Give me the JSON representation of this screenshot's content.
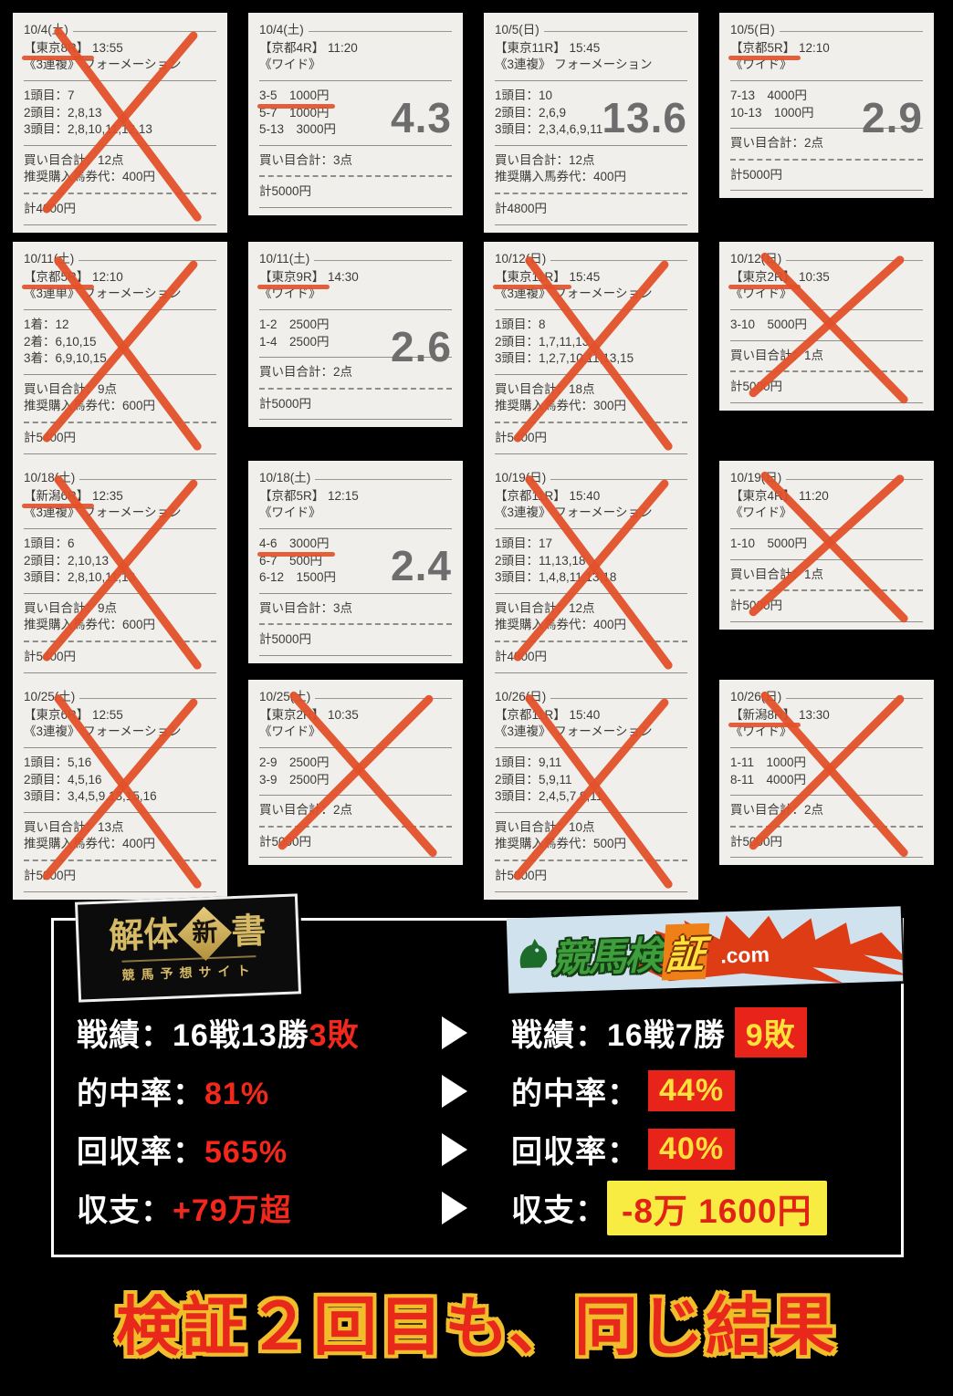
{
  "cards": [
    {
      "date": "10/4(土)",
      "race": "【東京8R】",
      "time": "13:55",
      "type": "《3連複》 フォーメーション",
      "race_marked": true,
      "selections": [
        {
          "text": "1頭目：7"
        },
        {
          "text": "2頭目：2,8,13"
        },
        {
          "text": "3頭目：2,8,10,11,12,13"
        }
      ],
      "points": "買い目合計：12点",
      "fee": "推奨購入馬券代：400円",
      "total": "計4800円",
      "result": "lose",
      "odds": ""
    },
    {
      "date": "10/4(土)",
      "race": "【京都4R】",
      "time": "11:20",
      "type": "《ワイド》",
      "race_marked": false,
      "selections": [
        {
          "text": "3-5　1000円",
          "underline": true
        },
        {
          "text": "5-7　1000円"
        },
        {
          "text": "5-13　3000円"
        }
      ],
      "points": "買い目合計：3点",
      "fee": "",
      "total": "計5000円",
      "result": "win",
      "odds": "4.3"
    },
    {
      "date": "10/5(日)",
      "race": "【東京11R】",
      "time": "15:45",
      "type": "《3連複》 フォーメーション",
      "race_marked": false,
      "selections": [
        {
          "text": "1頭目：10"
        },
        {
          "text": "2頭目：2,6,9"
        },
        {
          "text": "3頭目：2,3,4,6,9,11"
        }
      ],
      "points": "買い目合計：12点",
      "fee": "推奨購入馬券代：400円",
      "total": "計4800円",
      "result": "win",
      "odds": "13.6"
    },
    {
      "date": "10/5(日)",
      "race": "【京都5R】",
      "time": "12:10",
      "type": "《ワイド》",
      "race_marked": true,
      "selections": [
        {
          "text": "7-13　4000円"
        },
        {
          "text": "10-13　1000円"
        }
      ],
      "points": "買い目合計：2点",
      "fee": "",
      "total": "計5000円",
      "result": "win",
      "odds": "2.9"
    },
    {
      "date": "10/11(土)",
      "race": "【京都5R】",
      "time": "12:10",
      "type": "《3連単》 フォーメーション",
      "race_marked": true,
      "selections": [
        {
          "text": "1着：12"
        },
        {
          "text": "2着：6,10,15"
        },
        {
          "text": "3着：6,9,10,15"
        }
      ],
      "points": "買い目合計：9点",
      "fee": "推奨購入馬券代：600円",
      "total": "計5400円",
      "result": "lose",
      "odds": ""
    },
    {
      "date": "10/11(土)",
      "race": "【東京9R】",
      "time": "14:30",
      "type": "《ワイド》",
      "race_marked": true,
      "selections": [
        {
          "text": "1-2　2500円"
        },
        {
          "text": "1-4　2500円"
        }
      ],
      "points": "買い目合計：2点",
      "fee": "",
      "total": "計5000円",
      "result": "win",
      "odds": "2.6"
    },
    {
      "date": "10/12(日)",
      "race": "【東京11R】",
      "time": "15:45",
      "type": "《3連複》 フォーメーション",
      "race_marked": true,
      "selections": [
        {
          "text": "1頭目：8"
        },
        {
          "text": "2頭目：1,7,11,13"
        },
        {
          "text": "3頭目：1,2,7,10,11,13,15"
        }
      ],
      "points": "買い目合計：18点",
      "fee": "推奨購入馬券代：300円",
      "total": "計5400円",
      "result": "lose",
      "odds": ""
    },
    {
      "date": "10/12(日)",
      "race": "【東京2R】",
      "time": "10:35",
      "type": "《ワイド》",
      "race_marked": true,
      "selections": [
        {
          "text": "3-10　5000円"
        }
      ],
      "points": "買い目合計：1点",
      "fee": "",
      "total": "計5000円",
      "result": "lose",
      "odds": ""
    },
    {
      "date": "10/18(土)",
      "race": "【新潟6R】",
      "time": "12:35",
      "type": "《3連複》 フォーメーション",
      "race_marked": true,
      "selections": [
        {
          "text": "1頭目：6"
        },
        {
          "text": "2頭目：2,10,13"
        },
        {
          "text": "3頭目：2,8,10,11,13"
        }
      ],
      "points": "買い目合計：9点",
      "fee": "推奨購入馬券代：600円",
      "total": "計5400円",
      "result": "lose",
      "odds": ""
    },
    {
      "date": "10/18(土)",
      "race": "【京都5R】",
      "time": "12:15",
      "type": "《ワイド》",
      "race_marked": false,
      "selections": [
        {
          "text": "4-6　3000円",
          "underline": true
        },
        {
          "text": "6-7　500円"
        },
        {
          "text": "6-12　1500円"
        }
      ],
      "points": "買い目合計：3点",
      "fee": "",
      "total": "計5000円",
      "result": "win",
      "odds": "2.4"
    },
    {
      "date": "10/19(日)",
      "race": "【京都11R】",
      "time": "15:40",
      "type": "《3連複》 フォーメーション",
      "race_marked": false,
      "selections": [
        {
          "text": "1頭目：17"
        },
        {
          "text": "2頭目：11,13,18"
        },
        {
          "text": "3頭目：1,4,8,11,13,18"
        }
      ],
      "points": "買い目合計：12点",
      "fee": "推奨購入馬券代：400円",
      "total": "計4800円",
      "result": "lose",
      "odds": ""
    },
    {
      "date": "10/19(日)",
      "race": "【東京4R】",
      "time": "11:20",
      "type": "《ワイド》",
      "race_marked": false,
      "selections": [
        {
          "text": "1-10　5000円"
        }
      ],
      "points": "買い目合計：1点",
      "fee": "",
      "total": "計5000円",
      "result": "lose",
      "odds": ""
    },
    {
      "date": "10/25(土)",
      "race": "【東京6R】",
      "time": "12:55",
      "type": "《3連複》 フォーメーション",
      "race_marked": false,
      "selections": [
        {
          "text": "1頭目：5,16"
        },
        {
          "text": "2頭目：4,5,16"
        },
        {
          "text": "3頭目：3,4,5,9,13,15,16"
        }
      ],
      "points": "買い目合計：13点",
      "fee": "推奨購入馬券代：400円",
      "total": "計5200円",
      "result": "lose",
      "odds": ""
    },
    {
      "date": "10/25(土)",
      "race": "【東京2R】",
      "time": "10:35",
      "type": "《ワイド》",
      "race_marked": false,
      "selections": [
        {
          "text": "2-9　2500円"
        },
        {
          "text": "3-9　2500円"
        }
      ],
      "points": "買い目合計：2点",
      "fee": "",
      "total": "計5000円",
      "result": "lose",
      "odds": ""
    },
    {
      "date": "10/26(日)",
      "race": "【京都11R】",
      "time": "15:40",
      "type": "《3連複》 フォーメーション",
      "race_marked": false,
      "selections": [
        {
          "text": "1頭目：9,11"
        },
        {
          "text": "2頭目：5,9,11"
        },
        {
          "text": "3頭目：2,4,5,7,9,11"
        }
      ],
      "points": "買い目合計：10点",
      "fee": "推奨購入馬券代：500円",
      "total": "計5000円",
      "result": "lose",
      "odds": ""
    },
    {
      "date": "10/26(日)",
      "race": "【新潟8R】",
      "time": "13:30",
      "type": "《ワイド》",
      "race_marked": true,
      "selections": [
        {
          "text": "1-11　1000円"
        },
        {
          "text": "8-11　4000円"
        }
      ],
      "points": "買い目合計：2点",
      "fee": "",
      "total": "計5000円",
      "result": "lose",
      "odds": ""
    }
  ],
  "branding": {
    "left_logo": {
      "title_part1": "解体",
      "title_diamond": "新",
      "title_part2": "書",
      "subtitle": "競馬予想サイト"
    },
    "right_logo": {
      "text_main": "競馬検",
      "text_highlight": "証",
      "text_domain": ".com"
    }
  },
  "comparison": {
    "left": {
      "record_label": "戦績：",
      "record_value": "16戦13勝",
      "record_losses": "3敗",
      "hit_label": "的中率：",
      "hit_value": "81%",
      "return_label": "回収率：",
      "return_value": "565%",
      "balance_label": "収支：",
      "balance_value": "+79万超"
    },
    "right": {
      "record_label": "戦績：",
      "record_value": "16戦7勝",
      "record_losses": "9敗",
      "hit_label": "的中率：",
      "hit_value": "44%",
      "return_label": "回収率：",
      "return_value": "40%",
      "balance_label": "収支：",
      "balance_value": "-8万 1600円"
    }
  },
  "headline": "検証２回目も、同じ結果",
  "colors": {
    "mark_red": "#e2512a",
    "odds_gray": "#6d6d6d",
    "accent_red": "#e8231a",
    "accent_yellow": "#ffe13c",
    "gold": "#d6b964"
  }
}
